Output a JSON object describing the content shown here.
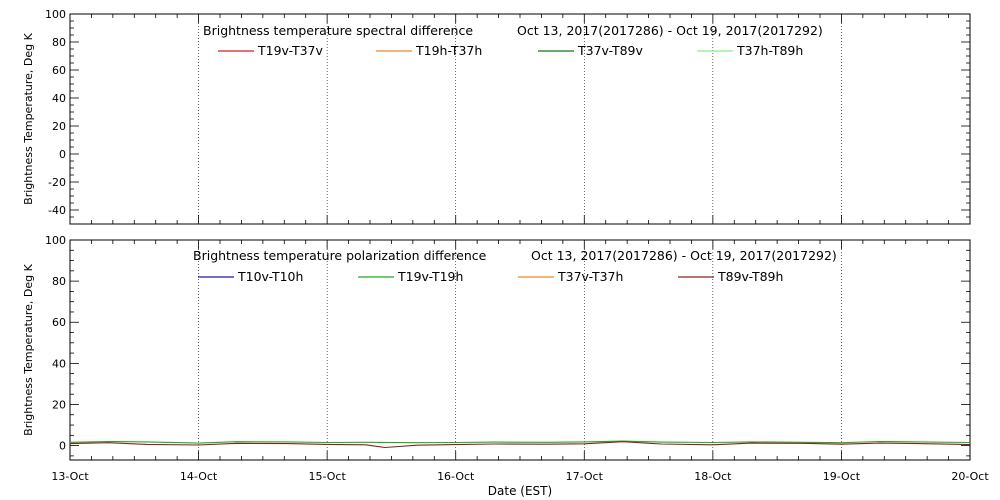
{
  "chart_data": [
    {
      "type": "line",
      "title": "Brightness temperature spectral difference",
      "date_range": "Oct 13, 2017(2017286) - Oct 19, 2017(2017292)",
      "ylabel": "Brightness Temperature, Deg K",
      "xlabel": "",
      "ylim": [
        -50,
        100
      ],
      "yticks": [
        -40,
        -20,
        0,
        20,
        40,
        60,
        80,
        100
      ],
      "xlim": [
        13,
        20
      ],
      "xticks": [
        13,
        14,
        15,
        16,
        17,
        18,
        19,
        20
      ],
      "x_tick_labels": [
        "13-Oct",
        "14-Oct",
        "15-Oct",
        "16-Oct",
        "17-Oct",
        "18-Oct",
        "19-Oct",
        "20-Oct"
      ],
      "grid": "vertical dotted lines at each day",
      "legend_placement": "top-center",
      "series": [
        {
          "name": "T19v-T37v",
          "color": "#cc2222",
          "values": []
        },
        {
          "name": "T19h-T37h",
          "color": "#ee8822",
          "values": []
        },
        {
          "name": "T37v-T89v",
          "color": "#117711",
          "values": []
        },
        {
          "name": "T37h-T89h",
          "color": "#88ee88",
          "values": []
        }
      ]
    },
    {
      "type": "line",
      "title": "Brightness temperature polarization difference",
      "date_range": "Oct 13, 2017(2017286) - Oct 19, 2017(2017292)",
      "ylabel": "Brightness Temperature, Deg K",
      "xlabel": "Date (EST)",
      "ylim": [
        -7,
        100
      ],
      "yticks": [
        0,
        20,
        40,
        60,
        80,
        100
      ],
      "xlim": [
        13,
        20
      ],
      "xticks": [
        13,
        14,
        15,
        16,
        17,
        18,
        19,
        20
      ],
      "x_tick_labels": [
        "13-Oct",
        "14-Oct",
        "15-Oct",
        "16-Oct",
        "17-Oct",
        "18-Oct",
        "19-Oct",
        "20-Oct"
      ],
      "grid": "vertical dotted lines at each day",
      "legend_placement": "top-center",
      "series": [
        {
          "name": "T10v-T10h",
          "color": "#1a1aaa",
          "x": [],
          "values": []
        },
        {
          "name": "T19v-T19h",
          "color": "#22aa22",
          "x": [
            13.0,
            13.3,
            13.6,
            14.0,
            14.3,
            14.7,
            15.0,
            15.3,
            15.7,
            16.0,
            16.3,
            16.7,
            17.0,
            17.3,
            17.6,
            18.0,
            18.3,
            18.7,
            19.0,
            19.3,
            19.6,
            20.0
          ],
          "values": [
            1.6,
            2.0,
            1.8,
            1.2,
            1.9,
            1.8,
            1.5,
            1.6,
            1.4,
            1.5,
            1.7,
            1.6,
            1.8,
            2.2,
            1.7,
            1.5,
            1.8,
            1.6,
            1.4,
            2.0,
            1.8,
            1.5
          ]
        },
        {
          "name": "T37v-T37h",
          "color": "#ee8822",
          "x": [],
          "values": []
        },
        {
          "name": "T89v-T89h",
          "color": "#882222",
          "x": [
            13.0,
            13.3,
            13.6,
            14.0,
            14.3,
            14.7,
            15.0,
            15.3,
            15.45,
            15.7,
            16.0,
            16.3,
            16.7,
            17.0,
            17.3,
            17.6,
            18.0,
            18.3,
            18.7,
            19.0,
            19.3,
            19.6,
            20.0
          ],
          "values": [
            1.0,
            1.4,
            0.6,
            0.3,
            1.1,
            1.0,
            0.6,
            0.4,
            -0.9,
            0.2,
            0.5,
            0.8,
            0.7,
            0.9,
            1.9,
            0.8,
            0.4,
            1.2,
            1.1,
            0.7,
            1.2,
            1.0,
            0.5
          ]
        }
      ]
    }
  ]
}
